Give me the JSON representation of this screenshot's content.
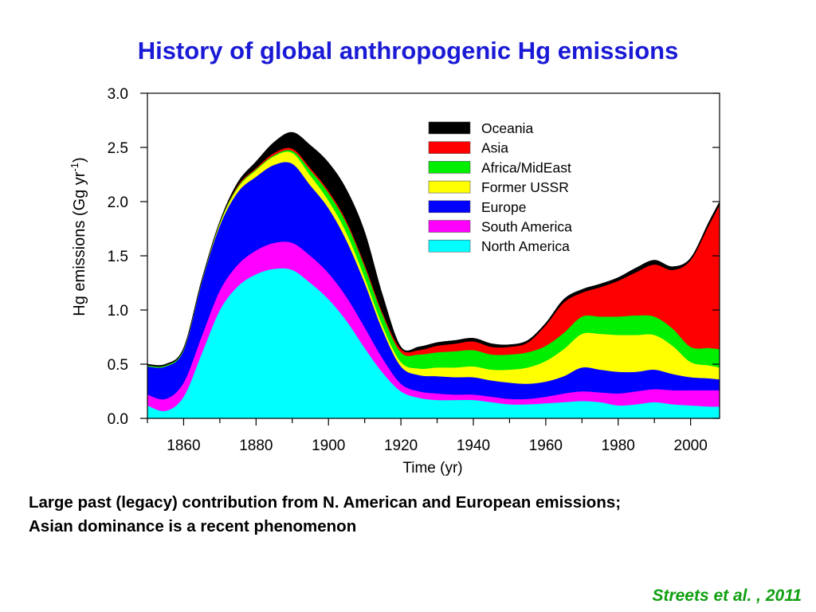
{
  "slide": {
    "title": "History of global anthropogenic Hg emissions",
    "caption_lines": [
      "Large past (legacy) contribution from N. American and European emissions;",
      "Asian dominance is a recent phenomenon"
    ],
    "citation": "Streets et al. , 2011"
  },
  "chart_data": {
    "type": "area",
    "stacked": true,
    "xlabel": "Time (yr)",
    "ylabel": "Hg emissions (Gg yr-1)",
    "xlim": [
      1850,
      2008
    ],
    "ylim": [
      0,
      3.0
    ],
    "x_ticks": [
      1860,
      1880,
      1900,
      1920,
      1940,
      1960,
      1980,
      2000
    ],
    "y_ticks": [
      "0.0",
      "0.5",
      "1.0",
      "1.5",
      "2.0",
      "2.5",
      "3.0"
    ],
    "legend_position": "top-right",
    "x": [
      1850,
      1855,
      1860,
      1865,
      1870,
      1875,
      1880,
      1885,
      1890,
      1895,
      1900,
      1905,
      1910,
      1915,
      1920,
      1925,
      1930,
      1935,
      1940,
      1945,
      1950,
      1955,
      1960,
      1965,
      1970,
      1975,
      1980,
      1985,
      1990,
      1995,
      2000,
      2005,
      2008
    ],
    "series": [
      {
        "name": "North America",
        "color": "#00ffff",
        "values": [
          0.12,
          0.07,
          0.2,
          0.6,
          1.0,
          1.22,
          1.33,
          1.38,
          1.37,
          1.25,
          1.1,
          0.9,
          0.65,
          0.42,
          0.25,
          0.19,
          0.17,
          0.17,
          0.17,
          0.15,
          0.13,
          0.13,
          0.14,
          0.15,
          0.16,
          0.15,
          0.12,
          0.13,
          0.15,
          0.13,
          0.12,
          0.11,
          0.11
        ]
      },
      {
        "name": "South America",
        "color": "#ff00ff",
        "values": [
          0.1,
          0.11,
          0.13,
          0.16,
          0.18,
          0.2,
          0.22,
          0.24,
          0.25,
          0.25,
          0.24,
          0.22,
          0.19,
          0.13,
          0.07,
          0.06,
          0.06,
          0.05,
          0.05,
          0.05,
          0.05,
          0.05,
          0.06,
          0.08,
          0.09,
          0.09,
          0.11,
          0.12,
          0.12,
          0.13,
          0.14,
          0.15,
          0.15
        ]
      },
      {
        "name": "Europe",
        "color": "#0000ff",
        "values": [
          0.26,
          0.3,
          0.3,
          0.5,
          0.6,
          0.67,
          0.68,
          0.72,
          0.73,
          0.65,
          0.6,
          0.52,
          0.41,
          0.26,
          0.16,
          0.15,
          0.16,
          0.16,
          0.16,
          0.15,
          0.15,
          0.14,
          0.14,
          0.16,
          0.22,
          0.21,
          0.2,
          0.18,
          0.18,
          0.15,
          0.12,
          0.11,
          0.1
        ]
      },
      {
        "name": "Former USSR",
        "color": "#ffff00",
        "values": [
          0.0,
          0.0,
          0.0,
          0.0,
          0.02,
          0.04,
          0.06,
          0.08,
          0.1,
          0.09,
          0.07,
          0.07,
          0.05,
          0.04,
          0.04,
          0.06,
          0.08,
          0.09,
          0.1,
          0.1,
          0.12,
          0.15,
          0.19,
          0.25,
          0.31,
          0.33,
          0.34,
          0.34,
          0.32,
          0.26,
          0.14,
          0.12,
          0.11
        ]
      },
      {
        "name": "Africa/MidEast",
        "color": "#00ee00",
        "values": [
          0.01,
          0.01,
          0.01,
          0.01,
          0.01,
          0.01,
          0.01,
          0.01,
          0.02,
          0.05,
          0.07,
          0.09,
          0.1,
          0.1,
          0.09,
          0.13,
          0.14,
          0.15,
          0.15,
          0.14,
          0.14,
          0.14,
          0.14,
          0.15,
          0.16,
          0.16,
          0.17,
          0.18,
          0.17,
          0.16,
          0.14,
          0.16,
          0.17
        ]
      },
      {
        "name": "Asia",
        "color": "#ff0000",
        "values": [
          0.0,
          0.0,
          0.0,
          0.0,
          0.0,
          0.01,
          0.01,
          0.02,
          0.02,
          0.02,
          0.02,
          0.02,
          0.02,
          0.02,
          0.03,
          0.04,
          0.06,
          0.07,
          0.08,
          0.07,
          0.07,
          0.09,
          0.19,
          0.28,
          0.22,
          0.27,
          0.33,
          0.4,
          0.48,
          0.54,
          0.8,
          1.13,
          1.33
        ]
      },
      {
        "name": "Oceania",
        "color": "#000000",
        "values": [
          0.01,
          0.01,
          0.01,
          0.01,
          0.01,
          0.03,
          0.06,
          0.1,
          0.15,
          0.21,
          0.26,
          0.29,
          0.3,
          0.16,
          0.02,
          0.03,
          0.03,
          0.03,
          0.03,
          0.03,
          0.02,
          0.02,
          0.02,
          0.03,
          0.03,
          0.03,
          0.03,
          0.04,
          0.04,
          0.03,
          0.02,
          0.03,
          0.03
        ]
      }
    ]
  }
}
